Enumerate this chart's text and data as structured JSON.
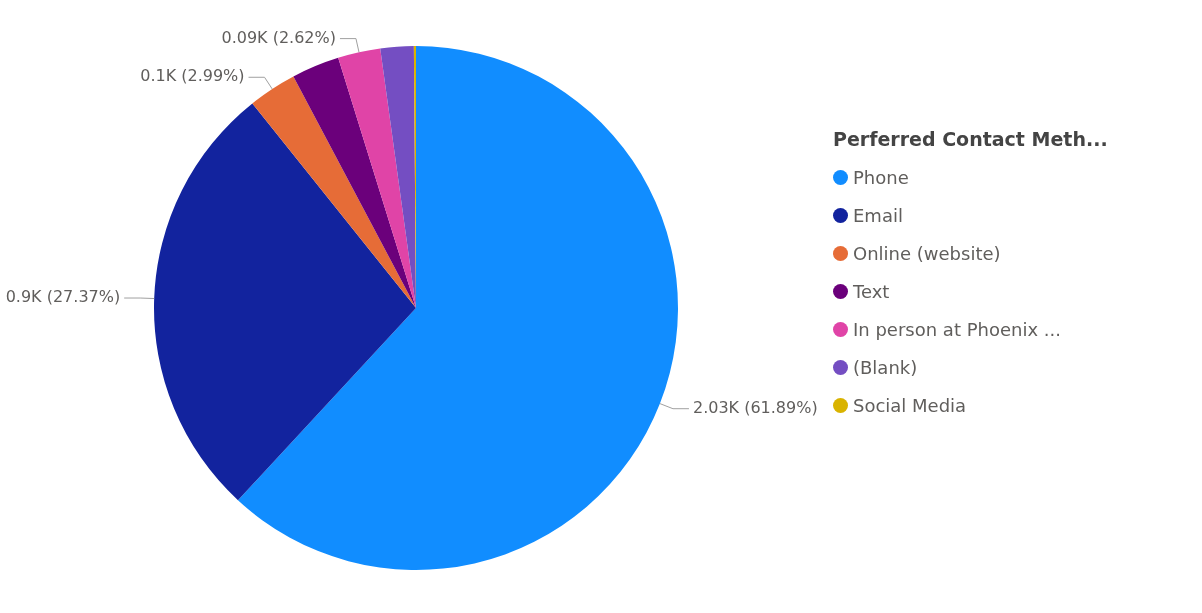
{
  "chart_data": {
    "type": "pie",
    "legend_title": "Perferred Contact Meth...",
    "legend": "right",
    "categories": [
      "Phone",
      "Email",
      "Online (website)",
      "Text",
      "In person at Phoenix ...",
      "(Blank)",
      "Social Media"
    ],
    "values": [
      61.89,
      27.37,
      2.99,
      2.95,
      2.62,
      2.05,
      0.13
    ],
    "colors": [
      "#118dff",
      "#12239e",
      "#e66c37",
      "#6b007b",
      "#e044a7",
      "#744ec2",
      "#d9b300"
    ],
    "value_labels": [
      "2.03K (61.89%)",
      "0.9K (27.37%)",
      "0.1K (2.99%)",
      null,
      "0.09K (2.62%)",
      null,
      null
    ]
  }
}
